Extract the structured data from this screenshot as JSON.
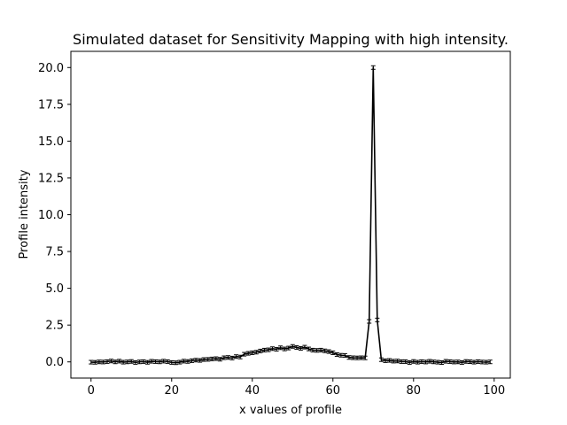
{
  "chart_data": {
    "type": "line",
    "title": "Simulated dataset for Sensitivity Mapping with high intensity.",
    "xlabel": "x values of profile",
    "ylabel": "Profile intensity",
    "xlim": [
      -5,
      104
    ],
    "ylim": [
      -1.1,
      21.1
    ],
    "x_ticks": [
      0,
      20,
      40,
      60,
      80,
      100
    ],
    "y_ticks": [
      0.0,
      2.5,
      5.0,
      7.5,
      10.0,
      12.5,
      15.0,
      17.5,
      20.0
    ],
    "x_tick_labels": [
      "0",
      "20",
      "40",
      "60",
      "80",
      "100"
    ],
    "y_tick_labels": [
      "0.0",
      "2.5",
      "5.0",
      "7.5",
      "10.0",
      "12.5",
      "15.0",
      "17.5",
      "20.0"
    ],
    "grid": false,
    "legend": "none",
    "series": [
      {
        "color": "#000000",
        "error_bars": true,
        "x": [
          0,
          1,
          2,
          3,
          4,
          5,
          6,
          7,
          8,
          9,
          10,
          11,
          12,
          13,
          14,
          15,
          16,
          17,
          18,
          19,
          20,
          21,
          22,
          23,
          24,
          25,
          26,
          27,
          28,
          29,
          30,
          31,
          32,
          33,
          34,
          35,
          36,
          37,
          38,
          39,
          40,
          41,
          42,
          43,
          44,
          45,
          46,
          47,
          48,
          49,
          50,
          51,
          52,
          53,
          54,
          55,
          56,
          57,
          58,
          59,
          60,
          61,
          62,
          63,
          64,
          65,
          66,
          67,
          68,
          69,
          70,
          71,
          72,
          73,
          74,
          75,
          76,
          77,
          78,
          79,
          80,
          81,
          82,
          83,
          84,
          85,
          86,
          87,
          88,
          89,
          90,
          91,
          92,
          93,
          94,
          95,
          96,
          97,
          98,
          99
        ],
        "y": [
          -0.02,
          -0.03,
          0.0,
          -0.01,
          0.02,
          0.06,
          0.0,
          0.05,
          -0.02,
          0.0,
          0.03,
          -0.04,
          0.0,
          0.02,
          -0.03,
          0.04,
          0.02,
          0.0,
          0.05,
          0.02,
          -0.04,
          -0.06,
          -0.02,
          0.05,
          0.03,
          0.08,
          0.12,
          0.1,
          0.16,
          0.17,
          0.2,
          0.22,
          0.18,
          0.28,
          0.3,
          0.26,
          0.36,
          0.33,
          0.52,
          0.58,
          0.62,
          0.66,
          0.74,
          0.8,
          0.82,
          0.9,
          0.86,
          0.96,
          0.88,
          0.94,
          1.05,
          0.98,
          0.92,
          1.0,
          0.88,
          0.8,
          0.78,
          0.8,
          0.75,
          0.7,
          0.62,
          0.5,
          0.45,
          0.44,
          0.3,
          0.28,
          0.27,
          0.28,
          0.27,
          2.75,
          20.0,
          2.85,
          0.15,
          0.08,
          0.1,
          0.05,
          0.06,
          0.02,
          0.02,
          -0.04,
          0.03,
          -0.02,
          0.02,
          -0.01,
          0.04,
          0.0,
          -0.02,
          -0.05,
          0.04,
          0.02,
          -0.01,
          0.0,
          -0.04,
          0.03,
          0.01,
          -0.02,
          0.02,
          -0.01,
          -0.02,
          0.0
        ],
        "yerr": 0.06
      }
    ]
  }
}
